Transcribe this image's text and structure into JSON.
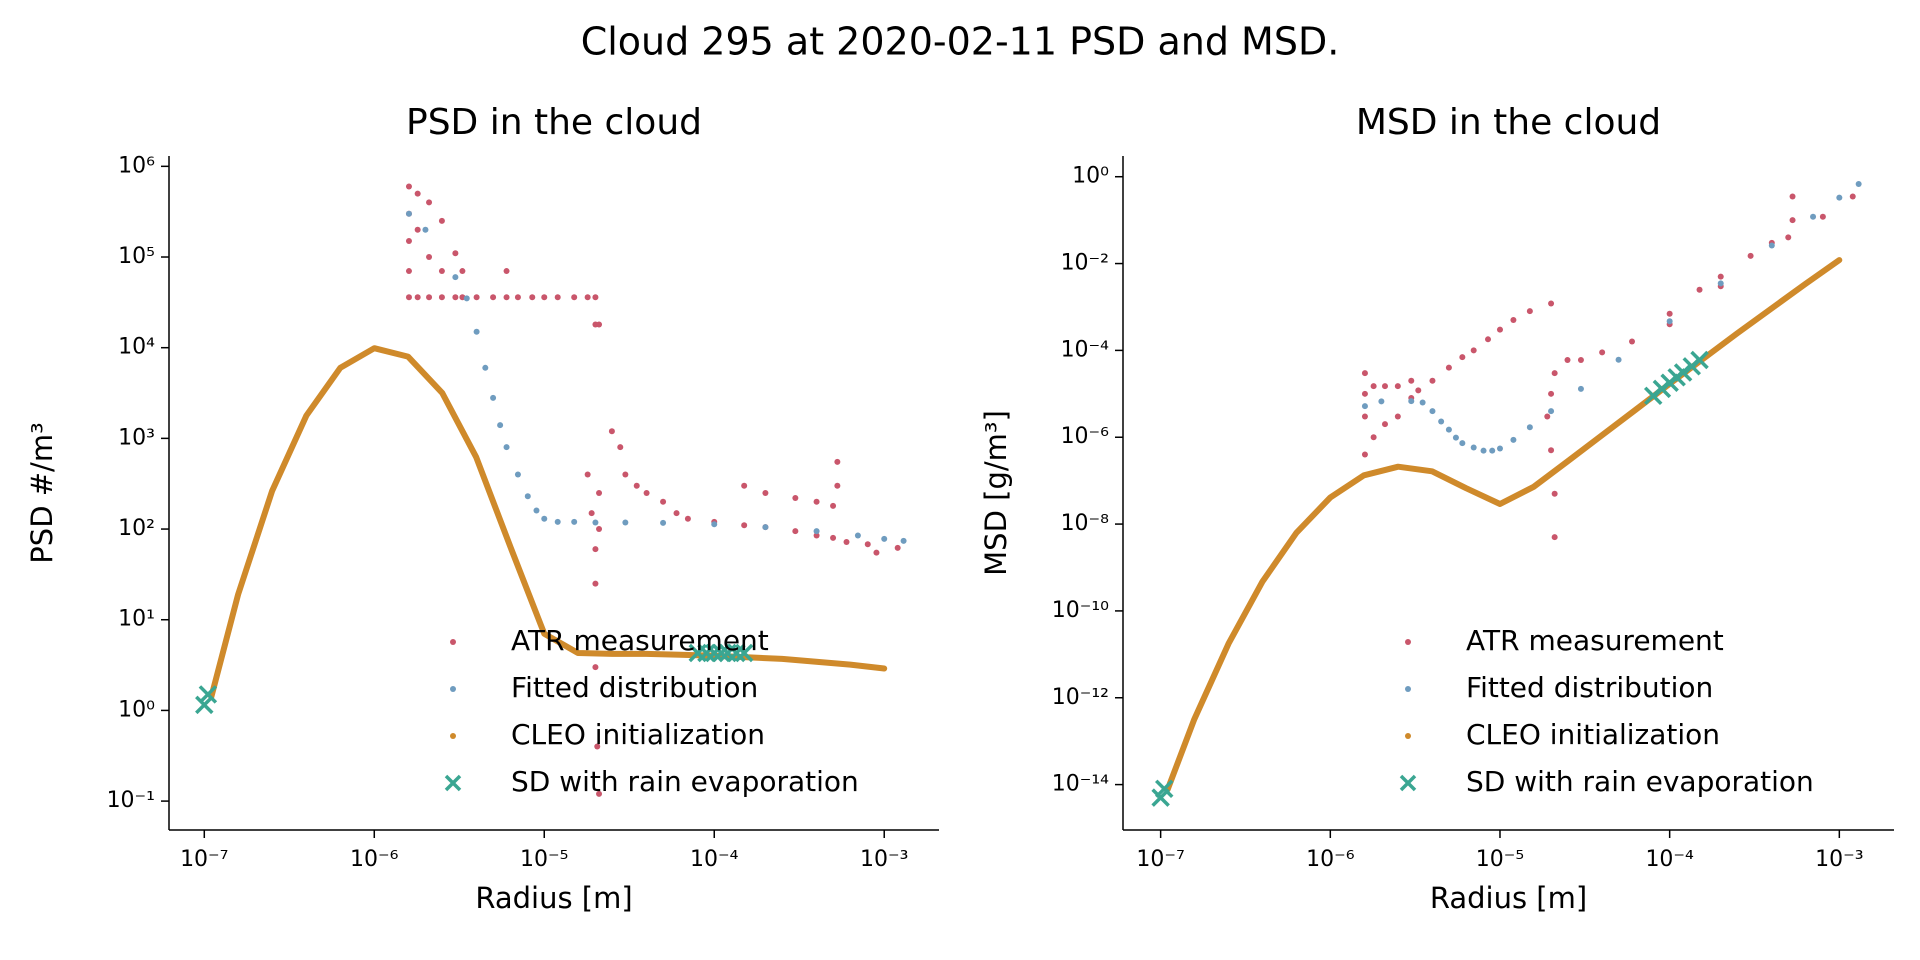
{
  "title": "Cloud 295 at 2020-02-11  PSD and MSD.",
  "chart_data": [
    {
      "type": "scatter",
      "title": "PSD in the cloud",
      "xlabel": "Radius [m]",
      "ylabel": "PSD #/m³",
      "xscale": "log",
      "yscale": "log",
      "legend": "lower right",
      "xlim": [
        6.2e-08,
        0.0021
      ],
      "ylim": [
        0.048,
        1300000.0
      ],
      "xticks": [
        {
          "value": 1e-07,
          "label": "10⁻⁷"
        },
        {
          "value": 1e-06,
          "label": "10⁻⁶"
        },
        {
          "value": 1e-05,
          "label": "10⁻⁵"
        },
        {
          "value": 0.0001,
          "label": "10⁻⁴"
        },
        {
          "value": 0.001,
          "label": "10⁻³"
        }
      ],
      "yticks": [
        {
          "value": 0.1,
          "label": "10⁻¹"
        },
        {
          "value": 1,
          "label": "10⁰"
        },
        {
          "value": 10,
          "label": "10¹"
        },
        {
          "value": 100,
          "label": "10²"
        },
        {
          "value": 1000,
          "label": "10³"
        },
        {
          "value": 10000,
          "label": "10⁴"
        },
        {
          "value": 100000,
          "label": "10⁵"
        },
        {
          "value": 1000000,
          "label": "10⁶"
        }
      ],
      "series": [
        {
          "name": "ATR measurement",
          "color": "#c9566b",
          "marker": "dot",
          "x": [
            1.6e-06,
            1.6e-06,
            1.6e-06,
            1.6e-06,
            1.6e-06,
            1.8e-06,
            1.8e-06,
            1.8e-06,
            2.1e-06,
            2.1e-06,
            2.1e-06,
            2.5e-06,
            2.5e-06,
            2.5e-06,
            3e-06,
            3e-06,
            3.3e-06,
            3.3e-06,
            4e-06,
            5e-06,
            6e-06,
            7e-06,
            8.5e-06,
            1e-05,
            1.2e-05,
            1.5e-05,
            1.8e-05,
            2e-05,
            6e-06,
            2e-05,
            2.1e-05,
            1.8e-05,
            1.9e-05,
            2e-05,
            2e-05,
            2.1e-05,
            2.1e-05,
            2.1e-05,
            2.05e-05,
            2e-05,
            2.5e-05,
            2.8e-05,
            3e-05,
            3.5e-05,
            4e-05,
            5e-05,
            6e-05,
            7e-05,
            0.0001,
            0.00015,
            0.0002,
            0.0003,
            0.0004,
            0.0005,
            0.00053,
            0.00053,
            0.00015,
            0.0002,
            0.0003,
            0.0004,
            0.0005,
            0.0006,
            0.0008,
            0.0012,
            0.0009
          ],
          "values": [
            600000,
            300000,
            150000,
            70000,
            36000,
            500000,
            200000,
            36000,
            400000,
            100000,
            36000,
            250000,
            70000,
            36000,
            110000,
            36000,
            70000,
            36000,
            36000,
            36000,
            36000,
            36000,
            36000,
            36000,
            36000,
            36000,
            36000,
            36000,
            70000,
            18000,
            18000,
            400,
            150,
            60,
            25,
            250,
            100,
            0.12,
            0.4,
            3,
            1200,
            800,
            400,
            300,
            250,
            200,
            150,
            130,
            120,
            300,
            250,
            220,
            200,
            180,
            550,
            300,
            110,
            105,
            95,
            85,
            80,
            72,
            68,
            62,
            55
          ]
        },
        {
          "name": "Fitted distribution",
          "color": "#6f9cbf",
          "marker": "dot",
          "x": [
            1.6e-06,
            2e-06,
            3e-06,
            3.5e-06,
            4e-06,
            4.5e-06,
            5e-06,
            5.5e-06,
            6e-06,
            7e-06,
            8e-06,
            9e-06,
            1e-05,
            1.2e-05,
            1.5e-05,
            2e-05,
            3e-05,
            5e-05,
            0.0001,
            0.0002,
            0.0004,
            0.0007,
            0.001,
            0.0013
          ],
          "values": [
            300000,
            200000,
            60000,
            35000,
            15000,
            6000,
            2800,
            1400,
            800,
            400,
            230,
            160,
            130,
            120,
            120,
            118,
            118,
            117,
            113,
            105,
            95,
            85,
            78,
            74
          ]
        },
        {
          "name": "CLEO initialization",
          "color": "#cf8a2b",
          "marker": "curve",
          "x": [
            1.1e-07,
            1.58e-07,
            2.51e-07,
            3.98e-07,
            6.31e-07,
            1e-06,
            1.58e-06,
            2.51e-06,
            3.98e-06,
            6.31e-06,
            1e-05,
            1.58e-05,
            2.51e-05,
            3.98e-05,
            6.31e-05,
            0.0001,
            0.000251,
            0.000631,
            0.001
          ],
          "values": [
            1.41,
            19,
            265,
            1780,
            6000,
            9860,
            7980,
            3170,
            620,
            64,
            7,
            4.3,
            4.2,
            4.2,
            4.1,
            4,
            3.7,
            3.2,
            2.9
          ]
        },
        {
          "name": "SD with rain evaporation",
          "color": "#3aa692",
          "marker": "x",
          "x": [
            1e-07,
            1.05e-07,
            8e-05,
            9e-05,
            0.0001,
            0.00011,
            0.00012,
            0.000135,
            0.00015
          ],
          "values": [
            1.15,
            1.5,
            4.3,
            4.3,
            4.3,
            4.3,
            4.3,
            4.3,
            4.3
          ]
        }
      ]
    },
    {
      "type": "scatter",
      "title": "MSD in the cloud",
      "xlabel": "Radius [m]",
      "ylabel": "MSD [g/m³]",
      "xscale": "log",
      "yscale": "log",
      "legend": "lower right",
      "xlim": [
        6e-08,
        0.0021
      ],
      "ylim": [
        9e-16,
        3
      ],
      "xticks": [
        {
          "value": 1e-07,
          "label": "10⁻⁷"
        },
        {
          "value": 1e-06,
          "label": "10⁻⁶"
        },
        {
          "value": 1e-05,
          "label": "10⁻⁵"
        },
        {
          "value": 0.0001,
          "label": "10⁻⁴"
        },
        {
          "value": 0.001,
          "label": "10⁻³"
        }
      ],
      "yticks": [
        {
          "value": 1e-14,
          "label": "10⁻¹⁴"
        },
        {
          "value": 1e-12,
          "label": "10⁻¹²"
        },
        {
          "value": 1e-10,
          "label": "10⁻¹⁰"
        },
        {
          "value": 1e-08,
          "label": "10⁻⁸"
        },
        {
          "value": 1e-06,
          "label": "10⁻⁶"
        },
        {
          "value": 0.0001,
          "label": "10⁻⁴"
        },
        {
          "value": 0.01,
          "label": "10⁻²"
        },
        {
          "value": 1,
          "label": "10⁰"
        }
      ],
      "series": [
        {
          "name": "ATR measurement",
          "color": "#c9566b",
          "marker": "dot",
          "x": [
            1.6e-06,
            1.6e-06,
            1.6e-06,
            1.6e-06,
            1.8e-06,
            1.8e-06,
            2.1e-06,
            2.1e-06,
            2.5e-06,
            2.5e-06,
            3e-06,
            3e-06,
            3.3e-06,
            4e-06,
            5e-06,
            6e-06,
            7e-06,
            8.5e-06,
            1e-05,
            1.2e-05,
            1.5e-05,
            2e-05,
            2e-05,
            2e-05,
            1.9e-05,
            2.1e-05,
            2.1e-05,
            2.1e-05,
            2.5e-05,
            3e-05,
            4e-05,
            6e-05,
            0.0001,
            0.00015,
            0.0002,
            0.0003,
            0.0004,
            0.0005,
            0.00053,
            0.00053,
            0.0008,
            0.0012,
            0.0001,
            0.0002
          ],
          "values": [
            4e-07,
            3e-06,
            1e-05,
            3e-05,
            1e-06,
            1.5e-05,
            2e-06,
            1.5e-05,
            3e-06,
            1.5e-05,
            2e-05,
            8e-06,
            1.2e-05,
            2e-05,
            4e-05,
            7e-05,
            0.0001,
            0.00018,
            0.0003,
            0.0005,
            0.0008,
            0.0012,
            1e-05,
            5e-07,
            3e-06,
            5e-08,
            5e-09,
            3e-05,
            6e-05,
            6e-05,
            9e-05,
            0.00016,
            0.0007,
            0.0025,
            0.005,
            0.015,
            0.03,
            0.04,
            0.35,
            0.1,
            0.12,
            0.35,
            0.0004,
            0.003
          ]
        },
        {
          "name": "Fitted distribution",
          "color": "#6f9cbf",
          "marker": "dot",
          "x": [
            1.6e-06,
            2e-06,
            3e-06,
            3.5e-06,
            4e-06,
            4.5e-06,
            5e-06,
            5.5e-06,
            6e-06,
            7e-06,
            8e-06,
            9e-06,
            1e-05,
            1.2e-05,
            1.5e-05,
            2e-05,
            3e-05,
            5e-05,
            0.0001,
            0.0002,
            0.0004,
            0.0007,
            0.001,
            0.0013
          ],
          "values": [
            5.2e-06,
            6.7e-06,
            6.8e-06,
            6.3e-06,
            4e-06,
            2.3e-06,
            1.5e-06,
            9.8e-07,
            7.3e-07,
            5.8e-07,
            4.9e-07,
            4.9e-07,
            5.5e-07,
            8.7e-07,
            1.7e-06,
            4e-06,
            1.3e-05,
            6.1e-05,
            0.00047,
            0.0035,
            0.026,
            0.12,
            0.33,
            0.68
          ]
        },
        {
          "name": "CLEO initialization",
          "color": "#cf8a2b",
          "marker": "curve",
          "x": [
            1.1e-07,
            1.58e-07,
            2.51e-07,
            3.98e-07,
            6.31e-07,
            1e-06,
            1.58e-06,
            2.51e-06,
            3.98e-06,
            6.31e-06,
            1e-05,
            1.58e-05,
            2.51e-05,
            3.98e-05,
            6.31e-05,
            0.0001,
            0.000251,
            0.000631,
            0.001
          ],
          "values": [
            7.8e-15,
            3.2e-13,
            1.76e-11,
            4.7e-10,
            6.3e-09,
            4.1e-08,
            1.33e-07,
            2.1e-07,
            1.64e-07,
            6.7e-08,
            2.9e-08,
            7.2e-08,
            2.8e-07,
            1.1e-06,
            4.3e-06,
            1.7e-05,
            0.00025,
            0.0034,
            0.012
          ]
        },
        {
          "name": "SD with rain evaporation",
          "color": "#3aa692",
          "marker": "x",
          "x": [
            1e-07,
            1.05e-07,
            8e-05,
            9e-05,
            0.0001,
            0.00011,
            0.00012,
            0.000135,
            0.00015
          ],
          "values": [
            5e-15,
            8e-15,
            9e-06,
            1.3e-05,
            1.8e-05,
            2.4e-05,
            3.1e-05,
            4.3e-05,
            6e-05
          ]
        }
      ]
    }
  ]
}
